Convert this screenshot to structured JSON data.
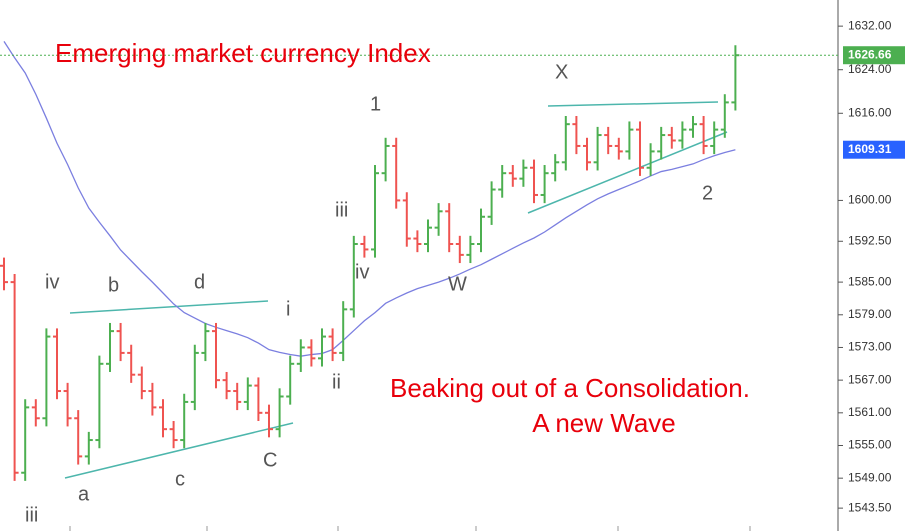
{
  "chart_data": {
    "type": "ohlc",
    "title": "Emerging market currency Index",
    "annotations": [
      "Beaking out of a Consolidation.",
      "A new Wave",
      "iv",
      "b",
      "d",
      "i",
      "a",
      "c",
      "C",
      "iii",
      "ii",
      "iv",
      "iii",
      "1",
      "W",
      "X",
      "2"
    ],
    "open": [
      1588,
      1585,
      1550,
      1562,
      1560,
      1575,
      1565,
      1560,
      1553,
      1556,
      1570,
      1576,
      1572,
      1568,
      1565,
      1562,
      1558,
      1556,
      1563,
      1572,
      1576,
      1567,
      1565,
      1563,
      1566,
      1561,
      1558,
      1564,
      1570,
      1573,
      1571,
      1575,
      1572,
      1580,
      1592,
      1591,
      1605,
      1610,
      1600,
      1593,
      1592,
      1595,
      1598,
      1592,
      1590,
      1592,
      1597,
      1602,
      1605,
      1604,
      1606,
      1601,
      1605,
      1607,
      1614,
      1610,
      1607,
      1612,
      1610,
      1609,
      1613,
      1606,
      1609,
      1612,
      1611,
      1613,
      1614,
      1610,
      1613,
      1618
    ],
    "high": [
      1589.5,
      1586.5,
      1563.5,
      1563.5,
      1576.5,
      1576.5,
      1566.5,
      1561.5,
      1557.5,
      1571.5,
      1577.5,
      1577.5,
      1573.5,
      1569.5,
      1566.5,
      1563.5,
      1559.5,
      1564.5,
      1573.5,
      1577.5,
      1577.5,
      1568.5,
      1566.5,
      1567.5,
      1567.5,
      1562.5,
      1565.5,
      1571.5,
      1574.5,
      1574.5,
      1576.5,
      1576.5,
      1581.5,
      1593.5,
      1593.5,
      1606.5,
      1611.5,
      1611.5,
      1601.5,
      1594.5,
      1596.5,
      1599.5,
      1599.5,
      1593.5,
      1593.5,
      1598.5,
      1603.5,
      1606.5,
      1606.5,
      1607.5,
      1607.5,
      1606.5,
      1608.5,
      1615.5,
      1615.5,
      1611.5,
      1613.5,
      1613.5,
      1611.5,
      1614.5,
      1614.5,
      1610.5,
      1613.5,
      1613.5,
      1614.5,
      1615.5,
      1615.5,
      1614.5,
      1619.5,
      1628.5
    ],
    "low": [
      1583.5,
      1548.5,
      1548.5,
      1558.5,
      1558.5,
      1563.5,
      1558.5,
      1551.5,
      1551.5,
      1554.5,
      1568.5,
      1570.5,
      1566.5,
      1563.5,
      1560.5,
      1556.5,
      1554.5,
      1554.5,
      1561.5,
      1570.5,
      1565.5,
      1563.5,
      1561.5,
      1561.5,
      1559.5,
      1556.5,
      1556.5,
      1562.5,
      1568.5,
      1569.5,
      1569.5,
      1570.5,
      1570.5,
      1578.5,
      1589.5,
      1589.5,
      1603.5,
      1598.5,
      1591.5,
      1590.5,
      1590.5,
      1593.5,
      1590.5,
      1588.5,
      1588.5,
      1590.5,
      1595.5,
      1600.5,
      1602.5,
      1602.5,
      1599.5,
      1599.5,
      1603.5,
      1605.5,
      1608.5,
      1605.5,
      1605.5,
      1608.5,
      1607.5,
      1607.5,
      1604.5,
      1604.5,
      1607.5,
      1609.5,
      1609.5,
      1611.5,
      1608.5,
      1608.5,
      1611.5,
      1616.5
    ],
    "close": [
      1585,
      1550,
      1562,
      1560,
      1575,
      1565,
      1560,
      1553,
      1556,
      1570,
      1576,
      1572,
      1568,
      1565,
      1562,
      1558,
      1556,
      1563,
      1572,
      1576,
      1567,
      1565,
      1563,
      1566,
      1561,
      1558,
      1564,
      1570,
      1573,
      1571,
      1575,
      1572,
      1580,
      1592,
      1591,
      1605,
      1610,
      1600,
      1593,
      1592,
      1595,
      1598,
      1592,
      1590,
      1592,
      1597,
      1602,
      1605,
      1604,
      1606,
      1601,
      1605,
      1607,
      1614,
      1610,
      1607,
      1612,
      1610,
      1609,
      1613,
      1606,
      1609,
      1612,
      1611,
      1613,
      1614,
      1610,
      1613,
      1618,
      1626.66
    ],
    "up_color": "#4caf50",
    "down_color": "#ef5350",
    "moving_average": {
      "color": "#7b7fe0",
      "values": [
        1629.2,
        1626.2,
        1623.4,
        1619.5,
        1615.1,
        1610.5,
        1606.6,
        1602.3,
        1598.6,
        1596.0,
        1593.5,
        1590.9,
        1588.9,
        1586.9,
        1585.0,
        1583.0,
        1581.0,
        1579.4,
        1578.4,
        1577.4,
        1576.7,
        1576.1,
        1575.5,
        1574.8,
        1573.8,
        1572.6,
        1572.1,
        1571.7,
        1571.4,
        1571.7,
        1571.9,
        1572.6,
        1574.3,
        1576.1,
        1577.9,
        1579.4,
        1581.1,
        1582.1,
        1583.0,
        1583.8,
        1584.4,
        1585.0,
        1585.7,
        1586.5,
        1587.4,
        1588.2,
        1589.2,
        1590.2,
        1591.2,
        1592.2,
        1593.1,
        1594.2,
        1595.5,
        1596.8,
        1598.0,
        1599.2,
        1600.3,
        1601.2,
        1602.0,
        1602.8,
        1603.6,
        1604.5,
        1605.3,
        1605.7,
        1606.2,
        1606.7,
        1607.5,
        1608.2,
        1608.8,
        1609.31
      ]
    },
    "last_color": "#4caf50",
    "ylim": [
      1539.3,
      1636.8
    ],
    "yticks": [
      {
        "value": 1632,
        "label": "1632.00"
      },
      {
        "value": 1624,
        "label": "1624.00"
      },
      {
        "value": 1616,
        "label": "1616.00"
      },
      {
        "value": 1600,
        "label": "1600.00"
      },
      {
        "value": 1592.5,
        "label": "1592.50"
      },
      {
        "value": 1585,
        "label": "1585.00"
      },
      {
        "value": 1579,
        "label": "1579.00"
      },
      {
        "value": 1573,
        "label": "1573.00"
      },
      {
        "value": 1567,
        "label": "1567.00"
      },
      {
        "value": 1561,
        "label": "1561.00"
      },
      {
        "value": 1555,
        "label": "1555.00"
      },
      {
        "value": 1549,
        "label": "1549.00"
      },
      {
        "value": 1543.5,
        "label": "1543.50"
      }
    ]
  }
}
